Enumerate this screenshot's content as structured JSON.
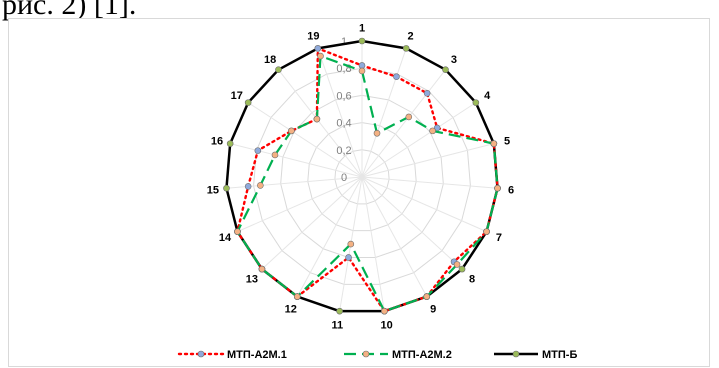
{
  "page": {
    "top_text": "рис. 2) [1]."
  },
  "chart_data": {
    "type": "radar",
    "categories": [
      "1",
      "2",
      "3",
      "4",
      "5",
      "6",
      "7",
      "8",
      "9",
      "10",
      "11",
      "12",
      "13",
      "14",
      "15",
      "16",
      "17",
      "18",
      "19"
    ],
    "rlim": [
      0,
      1
    ],
    "ring_labels": [
      "0",
      "0,2",
      "0,4",
      "0,6",
      "0,8",
      "1"
    ],
    "grid": true,
    "legend_position": "bottom",
    "series": [
      {
        "name": "МТП-А2М.1",
        "color": "#ff0000",
        "marker_color": "#8faadc",
        "style": "dotted",
        "values": [
          0.82,
          0.78,
          0.78,
          0.66,
          1.0,
          1.0,
          1.0,
          0.92,
          1.0,
          1.0,
          0.6,
          1.0,
          1.0,
          1.0,
          0.84,
          0.79,
          0.62,
          0.54,
          1.0
        ]
      },
      {
        "name": "МТП-А2М.2",
        "color": "#00b050",
        "marker_color": "#f4b183",
        "style": "dashed",
        "values": [
          0.78,
          0.34,
          0.56,
          0.62,
          1.0,
          1.0,
          1.0,
          0.95,
          1.0,
          1.0,
          0.5,
          1.0,
          1.0,
          1.0,
          0.75,
          0.66,
          0.62,
          0.54,
          0.94
        ]
      },
      {
        "name": "МТП-Б",
        "color": "#000000",
        "marker_color": "#9bbb59",
        "style": "solid",
        "values": [
          1,
          1,
          1,
          1,
          1,
          1,
          1,
          1,
          1,
          1,
          1,
          1,
          1,
          1,
          1,
          1,
          1,
          1,
          1
        ]
      }
    ]
  }
}
